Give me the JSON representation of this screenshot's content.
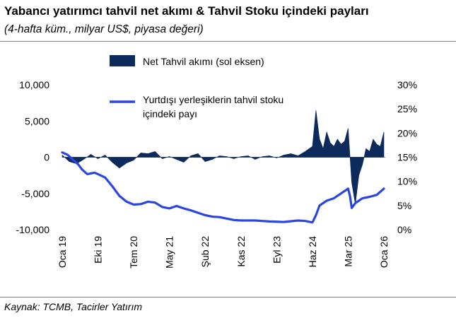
{
  "title": "Yabancı yatırımcı tahvil net akımı & Tahvil Stoku içindeki payları",
  "subtitle": "(4-hafta küm., milyar US$, piyasa değeri)",
  "source": "Kaynak: TCMB, Tacirler Yatırım",
  "colors": {
    "bar": "#0d2a5c",
    "line": "#2b45e0",
    "axis": "#8c8c8c"
  },
  "chart_data": {
    "type": "bar+line",
    "x_tick_labels": [
      "Oca 19",
      "Eki 19",
      "Tem 20",
      "May 21",
      "Şub 22",
      "Kas 22",
      "Eyl 23",
      "Haz 24",
      "Mar 25",
      "Oca 26"
    ],
    "left_axis": {
      "ylim": [
        -10000,
        10000
      ],
      "ticks": [
        "10,000",
        "5,000",
        "0",
        "-5,000",
        "-10,000"
      ]
    },
    "right_axis": {
      "ylim": [
        0,
        30
      ],
      "ticks": [
        "30%",
        "25%",
        "20%",
        "15%",
        "10%",
        "5%",
        "0%"
      ]
    },
    "legend": {
      "placement": "top-center"
    },
    "series": [
      {
        "name": "Net Tahvil akımı (sol eksen)",
        "type": "area",
        "axis": "left",
        "x_index": [
          0,
          0.2,
          0.4,
          0.6,
          0.8,
          1.0,
          1.2,
          1.4,
          1.6,
          1.8,
          2.0,
          2.2,
          2.4,
          2.6,
          2.8,
          3.0,
          3.2,
          3.4,
          3.6,
          3.8,
          4.0,
          4.2,
          4.4,
          4.6,
          4.8,
          5.0,
          5.2,
          5.4,
          5.6,
          5.8,
          6.0,
          6.2,
          6.4,
          6.6,
          6.8,
          7.0,
          7.1,
          7.2,
          7.3,
          7.4,
          7.5,
          7.6,
          7.7,
          7.8,
          7.9,
          8.0,
          8.1,
          8.2,
          8.3,
          8.4,
          8.5,
          8.6,
          8.7,
          8.8,
          8.9,
          9.0
        ],
        "values": [
          300,
          -600,
          -900,
          -300,
          400,
          -200,
          300,
          -700,
          -1500,
          -800,
          -400,
          600,
          500,
          800,
          -200,
          100,
          -300,
          -700,
          200,
          500,
          -600,
          -300,
          200,
          100,
          -200,
          100,
          200,
          -300,
          100,
          200,
          -100,
          300,
          500,
          200,
          800,
          1500,
          6500,
          2500,
          1200,
          3500,
          2000,
          1500,
          2500,
          1800,
          2200,
          4000,
          -3500,
          -6500,
          -2500,
          -1000,
          1200,
          800,
          2500,
          1800,
          1500,
          3500
        ]
      },
      {
        "name": "Yurtdışı yerleşiklerin tahvil stoku içindeki payı",
        "type": "line",
        "axis": "right",
        "x_index": [
          0,
          0.15,
          0.3,
          0.45,
          0.55,
          0.7,
          0.9,
          1.0,
          1.2,
          1.4,
          1.6,
          1.8,
          2.0,
          2.2,
          2.4,
          2.6,
          2.8,
          3.0,
          3.2,
          3.4,
          3.6,
          3.8,
          4.0,
          4.2,
          4.4,
          4.6,
          4.8,
          5.0,
          5.4,
          5.8,
          6.2,
          6.6,
          6.8,
          7.0,
          7.1,
          7.2,
          7.4,
          7.6,
          7.8,
          8.0,
          8.05,
          8.1,
          8.2,
          8.3,
          8.4,
          8.6,
          8.8,
          9.0
        ],
        "values": [
          16,
          15.5,
          14.5,
          13.5,
          12.5,
          11.5,
          11.8,
          11.5,
          10.8,
          9,
          7,
          5.8,
          5.2,
          5.3,
          5.8,
          5.6,
          4.7,
          4.4,
          4.9,
          4.4,
          4.0,
          3.5,
          3.0,
          2.7,
          2.6,
          2.3,
          2.0,
          1.9,
          1.9,
          1.7,
          1.6,
          1.9,
          1.8,
          1.5,
          3.0,
          5.0,
          6.0,
          6.5,
          7.5,
          8.5,
          7.0,
          4.5,
          5.5,
          6.0,
          6.5,
          6.8,
          7.2,
          8.5
        ]
      }
    ]
  }
}
